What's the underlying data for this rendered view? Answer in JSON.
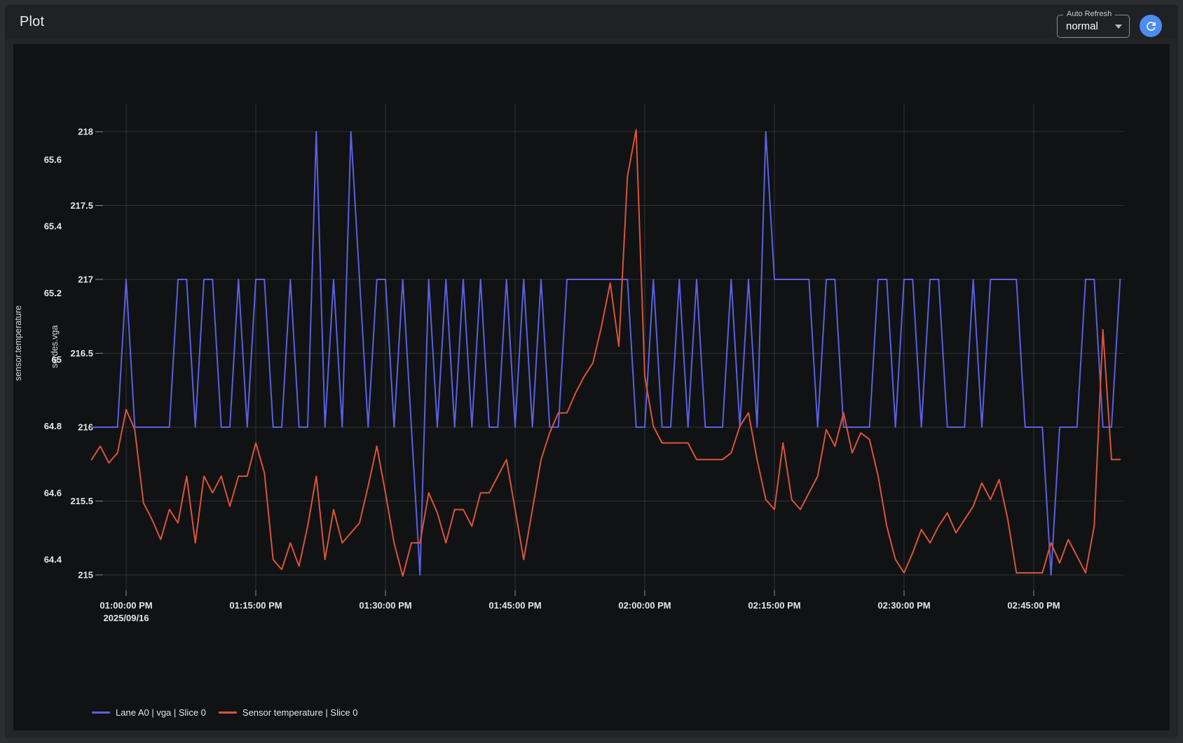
{
  "header": {
    "title": "Plot"
  },
  "auto_refresh": {
    "label": "Auto Refresh",
    "value": "normal"
  },
  "refresh_button": {
    "icon": "refresh-icon",
    "color": "#4b8df0"
  },
  "legend": [
    {
      "label": "Lane A0 | vga | Slice 0",
      "color": "#5b60e0"
    },
    {
      "label": "Sensor temperature | Slice 0",
      "color": "#d95438"
    }
  ],
  "chart_data": {
    "type": "line",
    "title": "",
    "grid": true,
    "legend_position": "bottom-left",
    "x_axis": {
      "tick_labels": [
        "01:00:00 PM",
        "01:15:00 PM",
        "01:30:00 PM",
        "01:45:00 PM",
        "02:00:00 PM",
        "02:15:00 PM",
        "02:30:00 PM",
        "02:45:00 PM"
      ],
      "tick_minutes": [
        0,
        15,
        30,
        45,
        60,
        75,
        90,
        105
      ],
      "date_label": "2025/09/16"
    },
    "y_axes": [
      {
        "title": "sensor.temperature",
        "ticks": [
          65.6,
          65.4,
          65.2,
          65,
          64.8,
          64.6,
          64.4
        ],
        "range": [
          64.25,
          65.72
        ]
      },
      {
        "title": "serdes.vga",
        "ticks": [
          218,
          217.5,
          217,
          216.5,
          216,
          215.5,
          215
        ],
        "range": [
          215,
          218
        ]
      }
    ],
    "sampling": {
      "start_minute_relative_to_1pm": -4,
      "step_minutes": 1
    },
    "series": [
      {
        "name": "Lane A0 | vga | Slice 0",
        "axis": "serdes.vga",
        "color": "#5b60e0",
        "values": [
          216,
          216,
          216,
          216,
          217,
          216,
          216,
          216,
          216,
          216,
          217,
          217,
          216,
          217,
          217,
          216,
          216,
          217,
          216,
          217,
          217,
          216,
          216,
          217,
          216,
          216,
          218,
          216,
          217,
          216,
          218,
          217,
          216,
          217,
          217,
          216,
          217,
          216,
          215,
          217,
          216,
          217,
          216,
          217,
          216,
          217,
          216,
          216,
          217,
          216,
          217,
          216,
          217,
          216,
          216,
          217,
          217,
          217,
          217,
          217,
          217,
          217,
          217,
          216,
          216,
          217,
          216,
          216,
          217,
          216,
          217,
          216,
          216,
          216,
          217,
          216,
          217,
          216,
          218,
          217,
          217,
          217,
          217,
          217,
          216,
          217,
          217,
          216,
          216,
          216,
          216,
          217,
          217,
          216,
          217,
          217,
          216,
          217,
          217,
          216,
          216,
          216,
          217,
          216,
          217,
          217,
          217,
          217,
          216,
          216,
          216,
          215,
          216,
          216,
          216,
          217,
          217,
          216,
          216,
          217
        ]
      },
      {
        "name": "Sensor temperature | Slice 0",
        "axis": "sensor.temperature",
        "color": "#d95438",
        "values": [
          64.7,
          64.74,
          64.69,
          64.72,
          64.85,
          64.79,
          64.57,
          64.52,
          64.46,
          64.55,
          64.51,
          64.65,
          64.45,
          64.65,
          64.6,
          64.65,
          64.56,
          64.65,
          64.65,
          64.75,
          64.66,
          64.4,
          64.37,
          64.45,
          64.38,
          64.5,
          64.65,
          64.4,
          64.55,
          64.45,
          64.48,
          64.51,
          64.62,
          64.74,
          64.6,
          64.45,
          64.35,
          64.45,
          64.45,
          64.6,
          64.54,
          64.45,
          64.55,
          64.55,
          64.5,
          64.6,
          64.6,
          64.65,
          64.7,
          64.55,
          64.4,
          64.55,
          64.7,
          64.78,
          64.84,
          64.84,
          64.9,
          64.95,
          64.99,
          65.1,
          65.23,
          65.04,
          65.55,
          65.69,
          64.95,
          64.8,
          64.75,
          64.75,
          64.75,
          64.75,
          64.7,
          64.7,
          64.7,
          64.7,
          64.72,
          64.8,
          64.84,
          64.7,
          64.58,
          64.55,
          64.75,
          64.58,
          64.55,
          64.6,
          64.65,
          64.79,
          64.74,
          64.84,
          64.72,
          64.78,
          64.76,
          64.65,
          64.5,
          64.4,
          64.36,
          64.42,
          64.49,
          64.45,
          64.5,
          64.54,
          64.48,
          64.52,
          64.56,
          64.63,
          64.58,
          64.64,
          64.52,
          64.36,
          64.36,
          64.36,
          64.36,
          64.45,
          64.39,
          64.46,
          64.41,
          64.36,
          64.5,
          65.09,
          64.7,
          64.7
        ]
      }
    ],
    "colors": {
      "grid": "#2e3136",
      "tick_text": "#e6e6e6",
      "axis_title": "#d8d8d8",
      "panel_bg": "#111214"
    }
  }
}
